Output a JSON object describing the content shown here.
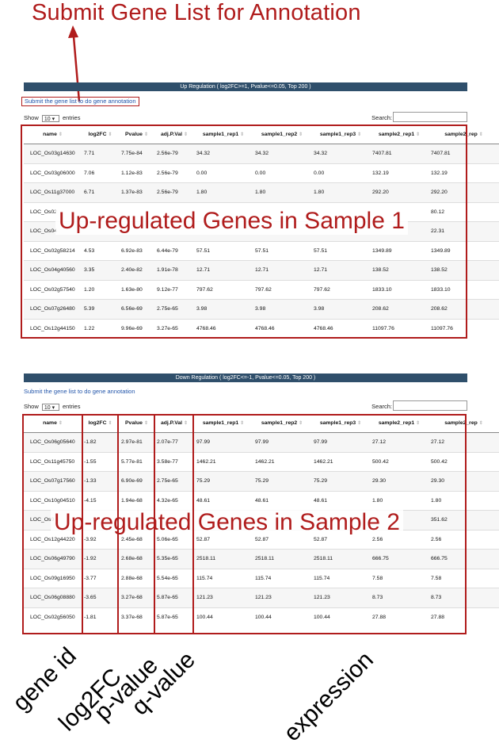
{
  "annotations": {
    "title": "Submit Gene List for Annotation",
    "up_overlay": "Up-regulated Genes in Sample 1",
    "down_overlay": "Up-regulated Genes in Sample 2",
    "bottom_labels": [
      "gene id",
      "log2FC",
      "p-value",
      "q-value",
      "expression"
    ],
    "accent_color": "#b01c1c"
  },
  "columns": [
    "name",
    "log2FC",
    "Pvalue",
    "adj.P.Val",
    "sample1_rep1",
    "sample1_rep2",
    "sample1_rep3",
    "sample2_rep1",
    "sample2_rep"
  ],
  "up_panel": {
    "header": "Up Regulation ( log2FC>=1, Pvalue<=0.05, Top 200 )",
    "submit_link": "Submit the gene list to do gene annotation",
    "show_label": "Show",
    "entries_value": "10",
    "entries_label": "entries",
    "search_label": "Search:",
    "rows": [
      [
        "LOC_Os03g14630",
        "7.71",
        "7.75e-84",
        "2.56e-79",
        "34.32",
        "34.32",
        "34.32",
        "7407.81",
        "7407.81"
      ],
      [
        "LOC_Os03g06000",
        "7.06",
        "1.12e-83",
        "2.56e-79",
        "0.00",
        "0.00",
        "0.00",
        "132.19",
        "132.19"
      ],
      [
        "LOC_Os11g37000",
        "6.71",
        "1.37e-83",
        "2.56e-79",
        "1.80",
        "1.80",
        "1.80",
        "292.20",
        "292.20"
      ],
      [
        "LOC_Os02",
        "",
        "",
        "",
        "",
        "",
        "",
        "",
        "80.12"
      ],
      [
        "LOC_Os04",
        "",
        "",
        "",
        "",
        "",
        "",
        "",
        "22.31"
      ],
      [
        "LOC_Os02g58214",
        "4.53",
        "6.92e-83",
        "6.44e-79",
        "57.51",
        "57.51",
        "57.51",
        "1349.89",
        "1349.89"
      ],
      [
        "LOC_Os04g40560",
        "3.35",
        "2.40e-82",
        "1.91e-78",
        "12.71",
        "12.71",
        "12.71",
        "138.52",
        "138.52"
      ],
      [
        "LOC_Os02g57540",
        "1.20",
        "1.63e-80",
        "9.12e-77",
        "797.62",
        "797.62",
        "797.62",
        "1833.10",
        "1833.10"
      ],
      [
        "LOC_Os07g26480",
        "5.39",
        "6.56e-69",
        "2.75e-65",
        "3.98",
        "3.98",
        "3.98",
        "208.62",
        "208.62"
      ],
      [
        "LOC_Os12g44150",
        "1.22",
        "9.96e-69",
        "3.27e-65",
        "4768.46",
        "4768.46",
        "4768.46",
        "11097.76",
        "11097.76"
      ]
    ]
  },
  "down_panel": {
    "header": "Down Regulation ( log2FC<=-1, Pvalue<=0.05, Top 200 )",
    "submit_link": "Submit the gene list to do gene annotation",
    "show_label": "Show",
    "entries_value": "10",
    "entries_label": "entries",
    "search_label": "Search:",
    "rows": [
      [
        "LOC_Os06g05640",
        "-1.82",
        "2.97e-81",
        "2.07e-77",
        "97.99",
        "97.99",
        "97.99",
        "27.12",
        "27.12"
      ],
      [
        "LOC_Os11g45750",
        "-1.55",
        "5.77e-81",
        "3.58e-77",
        "1462.21",
        "1462.21",
        "1462.21",
        "500.42",
        "500.42"
      ],
      [
        "LOC_Os07g17560",
        "-1.33",
        "6.90e-69",
        "2.75e-65",
        "75.29",
        "75.29",
        "75.29",
        "29.30",
        "29.30"
      ],
      [
        "LOC_Os10g04510",
        "-4.15",
        "1.94e-68",
        "4.32e-65",
        "48.61",
        "48.61",
        "48.61",
        "1.80",
        "1.80"
      ],
      [
        "LOC_Os0",
        "",
        "",
        "",
        "",
        "",
        "",
        "",
        "351.62"
      ],
      [
        "LOC_Os12g44220",
        "-3.92",
        "2.45e-68",
        "5.06e-65",
        "52.87",
        "52.87",
        "52.87",
        "2.56",
        "2.56"
      ],
      [
        "LOC_Os06g49790",
        "-1.92",
        "2.68e-68",
        "5.35e-65",
        "2518.11",
        "2518.11",
        "2518.11",
        "666.75",
        "666.75"
      ],
      [
        "LOC_Os09g16950",
        "-3.77",
        "2.88e-68",
        "5.54e-65",
        "115.74",
        "115.74",
        "115.74",
        "7.58",
        "7.58"
      ],
      [
        "LOC_Os06g08880",
        "-3.65",
        "3.27e-68",
        "5.87e-65",
        "121.23",
        "121.23",
        "121.23",
        "8.73",
        "8.73"
      ],
      [
        "LOC_Os02g56050",
        "-1.81",
        "3.37e-68",
        "5.87e-65",
        "100.44",
        "100.44",
        "100.44",
        "27.88",
        "27.88"
      ]
    ]
  }
}
